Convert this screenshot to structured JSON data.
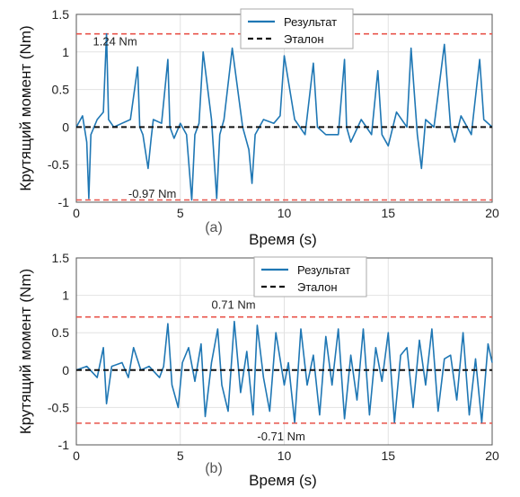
{
  "chart_data": [
    {
      "type": "line",
      "panel_label": "(a)",
      "xlabel": "Время (s)",
      "ylabel": "Крутящий момент (Nm)",
      "xlim": [
        0,
        20
      ],
      "ylim": [
        -1,
        1.5
      ],
      "xticks": [
        "0",
        "5",
        "10",
        "15",
        "20"
      ],
      "yticks": [
        "-1",
        "-0.5",
        "0",
        "0.5",
        "1",
        "1.5"
      ],
      "grid": true,
      "legend_position": "top-center",
      "annotations": [
        {
          "text": "1.24 Nm",
          "x": 0.8,
          "y": 1.15
        },
        {
          "text": "-0.97 Nm",
          "x": 2.5,
          "y": -0.88
        }
      ],
      "hlines": [
        1.24,
        -0.97
      ],
      "series": [
        {
          "name": "Результат",
          "color": "#1f77b4",
          "style": "solid",
          "x": [
            0,
            0.3,
            0.5,
            0.6,
            0.7,
            1.0,
            1.3,
            1.45,
            1.55,
            1.8,
            2.2,
            2.6,
            2.95,
            3.05,
            3.2,
            3.45,
            3.6,
            3.7,
            4.1,
            4.4,
            4.5,
            4.7,
            5.0,
            5.3,
            5.55,
            5.7,
            5.9,
            6.1,
            6.5,
            6.75,
            6.9,
            7.1,
            7.5,
            8.0,
            8.3,
            8.45,
            8.6,
            9.0,
            9.5,
            9.8,
            10.0,
            10.5,
            11.0,
            11.4,
            11.6,
            12.0,
            12.6,
            12.9,
            13.0,
            13.2,
            13.7,
            14.2,
            14.5,
            14.7,
            15.0,
            15.4,
            15.9,
            16.1,
            16.4,
            16.6,
            16.8,
            17.2,
            17.7,
            18.0,
            18.2,
            18.5,
            19.0,
            19.4,
            19.6,
            20.0
          ],
          "y": [
            0.0,
            0.15,
            -0.2,
            -0.95,
            -0.1,
            0.1,
            0.2,
            1.24,
            0.1,
            0.0,
            0.05,
            0.1,
            0.8,
            0.0,
            -0.1,
            -0.55,
            -0.15,
            0.1,
            0.05,
            0.9,
            0.0,
            -0.15,
            0.05,
            -0.1,
            -0.97,
            -0.1,
            0.05,
            1.0,
            0.1,
            -0.95,
            -0.1,
            0.1,
            1.05,
            0.0,
            -0.3,
            -0.75,
            -0.1,
            0.1,
            0.05,
            0.15,
            0.95,
            0.1,
            -0.1,
            0.85,
            0.0,
            -0.1,
            -0.1,
            0.9,
            0.0,
            -0.2,
            0.1,
            -0.1,
            0.75,
            -0.1,
            -0.25,
            0.2,
            0.0,
            1.05,
            -0.1,
            -0.55,
            0.1,
            0.0,
            1.1,
            0.0,
            -0.2,
            0.15,
            -0.1,
            0.9,
            0.1,
            0.0
          ]
        },
        {
          "name": "Эталон",
          "color": "#111111",
          "style": "dashed",
          "x": [
            0,
            20
          ],
          "y": [
            0,
            0
          ]
        }
      ]
    },
    {
      "type": "line",
      "panel_label": "(b)",
      "xlabel": "Время (s)",
      "ylabel": "Крутящий момент (Nm)",
      "xlim": [
        0,
        20
      ],
      "ylim": [
        -1,
        1.5
      ],
      "xticks": [
        "0",
        "5",
        "10",
        "15",
        "20"
      ],
      "yticks": [
        "-1",
        "-0.5",
        "0",
        "0.5",
        "1",
        "1.5"
      ],
      "grid": true,
      "legend_position": "top-center",
      "annotations": [
        {
          "text": "0.71 Nm",
          "x": 6.5,
          "y": 0.88
        },
        {
          "text": "-0.71 Nm",
          "x": 8.7,
          "y": -0.88
        }
      ],
      "hlines": [
        0.71,
        -0.71
      ],
      "series": [
        {
          "name": "Результат",
          "color": "#1f77b4",
          "style": "solid",
          "x": [
            0,
            0.5,
            1.0,
            1.3,
            1.45,
            1.7,
            2.2,
            2.5,
            2.75,
            3.1,
            3.5,
            4.0,
            4.2,
            4.4,
            4.6,
            4.9,
            5.1,
            5.4,
            5.7,
            6.0,
            6.2,
            6.5,
            6.8,
            7.0,
            7.3,
            7.6,
            7.9,
            8.2,
            8.5,
            8.7,
            9.0,
            9.3,
            9.6,
            10.0,
            10.2,
            10.5,
            10.8,
            11.1,
            11.4,
            11.7,
            12.0,
            12.3,
            12.6,
            12.9,
            13.2,
            13.5,
            13.8,
            14.1,
            14.4,
            14.7,
            15.0,
            15.3,
            15.6,
            15.9,
            16.2,
            16.5,
            16.8,
            17.1,
            17.4,
            17.7,
            18.0,
            18.3,
            18.6,
            18.9,
            19.2,
            19.5,
            19.8,
            20.0
          ],
          "y": [
            0.0,
            0.05,
            -0.1,
            0.3,
            -0.45,
            0.05,
            0.1,
            -0.1,
            0.3,
            0.0,
            0.05,
            -0.1,
            0.05,
            0.62,
            -0.2,
            -0.5,
            0.1,
            0.3,
            -0.15,
            0.35,
            -0.62,
            0.1,
            0.55,
            -0.2,
            -0.55,
            0.65,
            -0.3,
            0.25,
            -0.6,
            0.6,
            -0.1,
            -0.55,
            0.5,
            -0.2,
            0.1,
            -0.7,
            0.55,
            -0.2,
            0.2,
            -0.6,
            0.45,
            -0.2,
            0.55,
            -0.65,
            0.2,
            -0.4,
            0.55,
            -0.6,
            0.3,
            -0.15,
            0.5,
            -0.7,
            0.2,
            0.3,
            -0.5,
            0.4,
            -0.2,
            0.55,
            -0.55,
            0.15,
            0.2,
            -0.4,
            0.5,
            -0.6,
            0.15,
            -0.7,
            0.35,
            0.1
          ]
        },
        {
          "name": "Эталон",
          "color": "#111111",
          "style": "dashed",
          "x": [
            0,
            20
          ],
          "y": [
            0,
            0
          ]
        }
      ]
    }
  ]
}
